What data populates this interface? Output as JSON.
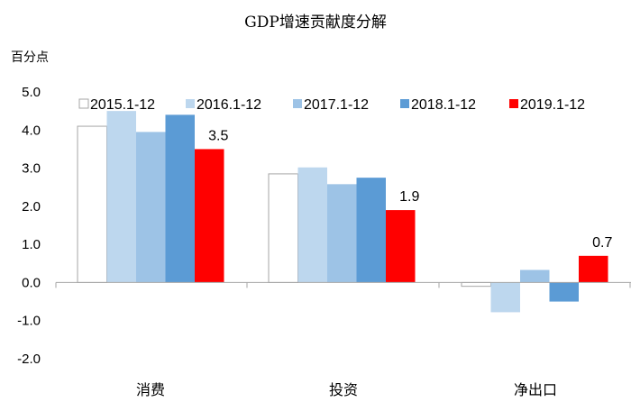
{
  "chart_data": {
    "type": "bar",
    "title": "GDP增速贡献度分解",
    "unit": "百分点",
    "categories": [
      "消费",
      "投资",
      "净出口"
    ],
    "ylim": [
      -2.0,
      5.0
    ],
    "yticks": [
      "5.0",
      "4.0",
      "3.0",
      "2.0",
      "1.0",
      "0.0",
      "-1.0",
      "-2.0"
    ],
    "legend_position": "top",
    "grid": false,
    "series": [
      {
        "name": "2015.1-12",
        "color": "#ffffff",
        "stroke": "#a6a6a6",
        "values": [
          4.1,
          2.85,
          -0.1
        ]
      },
      {
        "name": "2016.1-12",
        "color": "#bdd7ee",
        "values": [
          4.5,
          3.02,
          -0.78
        ]
      },
      {
        "name": "2017.1-12",
        "color": "#9dc3e6",
        "values": [
          3.95,
          2.58,
          0.33
        ]
      },
      {
        "name": "2018.1-12",
        "color": "#5b9bd5",
        "values": [
          4.4,
          2.75,
          -0.5
        ]
      },
      {
        "name": "2019.1-12",
        "color": "#ff0000",
        "values": [
          3.5,
          1.9,
          0.7
        ]
      }
    ],
    "data_labels": [
      {
        "category": "消费",
        "series": "2019.1-12",
        "text": "3.5"
      },
      {
        "category": "投资",
        "series": "2019.1-12",
        "text": "1.9"
      },
      {
        "category": "净出口",
        "series": "2019.1-12",
        "text": "0.7"
      }
    ]
  }
}
